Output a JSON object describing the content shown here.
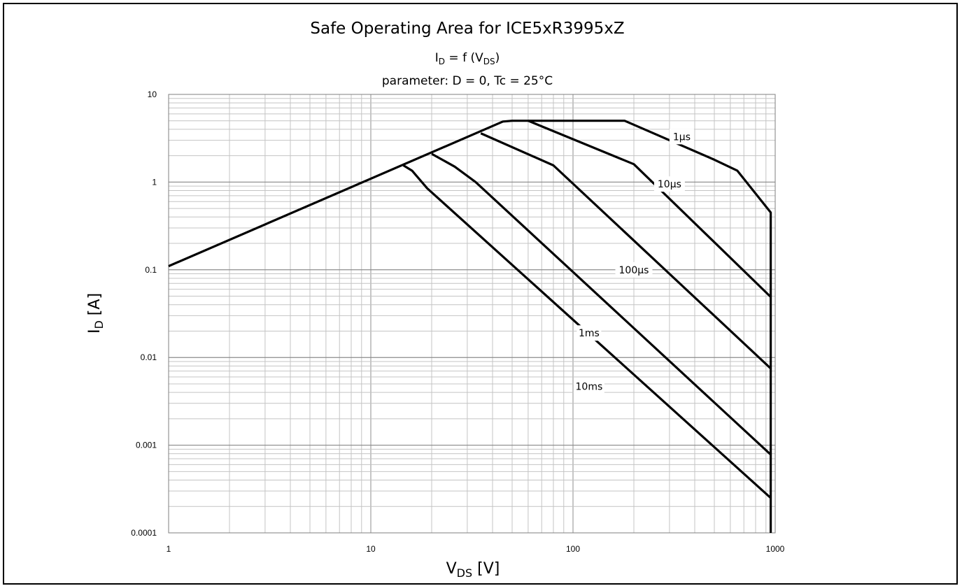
{
  "chart_data": {
    "type": "line",
    "title": "Safe Operating Area for ICE5xR3995xZ",
    "subtitle_main": "I",
    "subtitle_main_sub": "D",
    "subtitle_func": " = f (V",
    "subtitle_func_sub": "DS",
    "subtitle_func_end": ")",
    "subtitle_params": "parameter: D = 0, Tc = 25°C",
    "xlabel": "V",
    "xlabel_sub": "DS",
    "xlabel_unit": " [V]",
    "ylabel": "I",
    "ylabel_sub": "D",
    "ylabel_unit": " [A]",
    "x_scale": "log",
    "y_scale": "log",
    "xlim": [
      1,
      1000
    ],
    "ylim": [
      0.0001,
      10
    ],
    "grid": true,
    "x_ticks": [
      1,
      10,
      100,
      1000
    ],
    "x_tick_labels": [
      "1",
      "10",
      "100",
      "1000"
    ],
    "y_ticks": [
      0.0001,
      0.001,
      0.01,
      0.1,
      1,
      10
    ],
    "y_tick_labels": [
      "0.0001",
      "0.001",
      "0.01",
      "0.1",
      "1",
      "10"
    ],
    "series": [
      {
        "name": "1µs",
        "points": [
          [
            1,
            0.11
          ],
          [
            45,
            4.9
          ],
          [
            50,
            5.0
          ],
          [
            180,
            5.0
          ],
          [
            500,
            1.8
          ],
          [
            650,
            1.35
          ],
          [
            950,
            0.45
          ],
          [
            950,
            0.0001
          ]
        ],
        "label_at": [
          345,
          3.3
        ]
      },
      {
        "name": "10µs",
        "points": [
          [
            60,
            5.0
          ],
          [
            200,
            1.6
          ],
          [
            950,
            0.049
          ]
        ],
        "label_at": [
          300,
          0.95
        ]
      },
      {
        "name": "100µs",
        "points": [
          [
            35,
            3.6
          ],
          [
            80,
            1.55
          ],
          [
            950,
            0.0075
          ]
        ],
        "label_at": [
          200,
          0.1
        ]
      },
      {
        "name": "1ms",
        "points": [
          [
            20,
            2.1
          ],
          [
            26,
            1.5
          ],
          [
            33,
            1.0
          ],
          [
            950,
            0.00078
          ]
        ],
        "label_at": [
          120,
          0.019
        ]
      },
      {
        "name": "10ms",
        "points": [
          [
            14.5,
            1.55
          ],
          [
            16,
            1.35
          ],
          [
            19,
            0.85
          ],
          [
            950,
            0.00025
          ]
        ],
        "label_at": [
          120,
          0.0047
        ]
      }
    ]
  }
}
